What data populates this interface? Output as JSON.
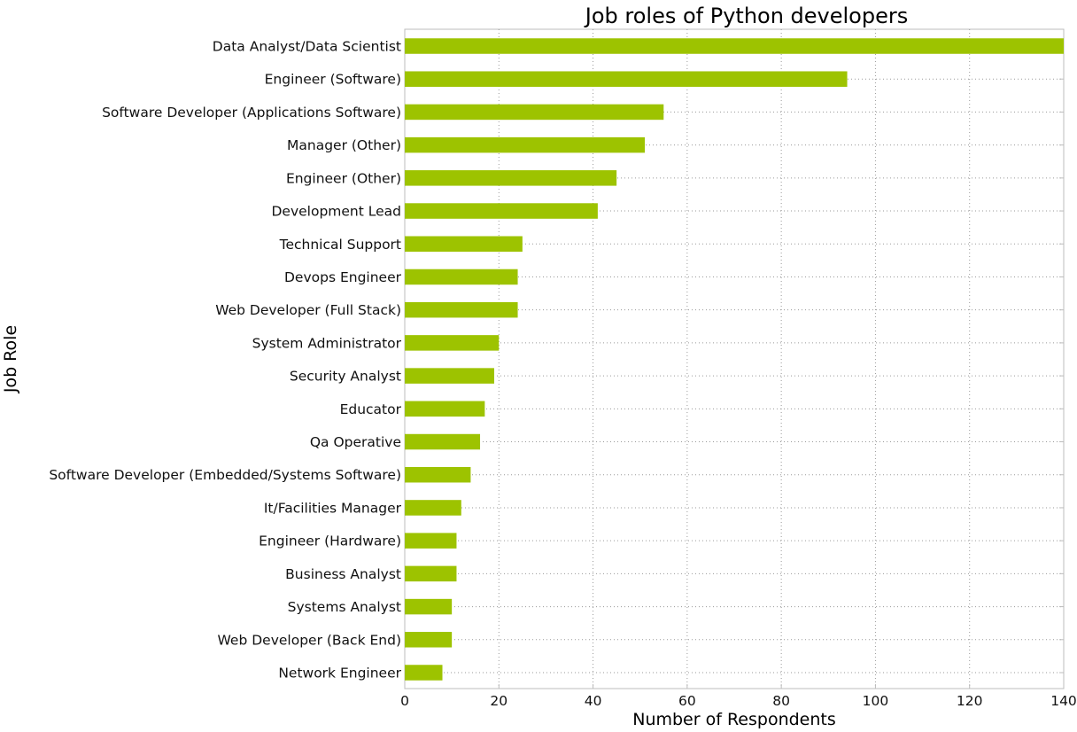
{
  "chart_data": {
    "type": "bar",
    "orientation": "horizontal",
    "title": "Job roles of Python developers",
    "xlabel": "Number of Respondents",
    "ylabel": "Job Role",
    "xlim": [
      0,
      140
    ],
    "xticks": [
      0,
      20,
      40,
      60,
      80,
      100,
      120,
      140
    ],
    "grid": true,
    "bar_color": "#9dc300",
    "categories": [
      "Data Analyst/Data Scientist",
      "Engineer (Software)",
      "Software Developer (Applications Software)",
      "Manager (Other)",
      "Engineer (Other)",
      "Development Lead",
      "Technical Support",
      "Devops Engineer",
      "Web Developer (Full Stack)",
      "System Administrator",
      "Security Analyst",
      "Educator",
      "Qa Operative",
      "Software Developer (Embedded/Systems Software)",
      "It/Facilities Manager",
      "Engineer (Hardware)",
      "Business Analyst",
      "Systems Analyst",
      "Web Developer (Back End)",
      "Network Engineer"
    ],
    "values": [
      140,
      94,
      55,
      51,
      45,
      41,
      25,
      24,
      24,
      20,
      19,
      17,
      16,
      14,
      12,
      11,
      11,
      10,
      10,
      8
    ]
  }
}
